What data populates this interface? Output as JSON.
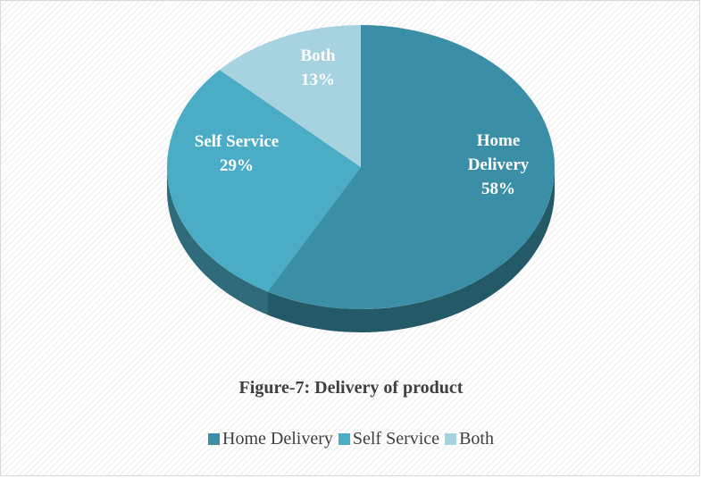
{
  "chart_data": {
    "type": "pie",
    "title": "Figure-7: Delivery of product",
    "categories": [
      "Home Delivery",
      "Self Service",
      "Both"
    ],
    "values": [
      58,
      29,
      13
    ],
    "value_labels": [
      "58%",
      "29%",
      "13%"
    ],
    "colors": [
      "#3a8fa6",
      "#4bacc6",
      "#a7d2df"
    ],
    "legend": "bottom"
  }
}
